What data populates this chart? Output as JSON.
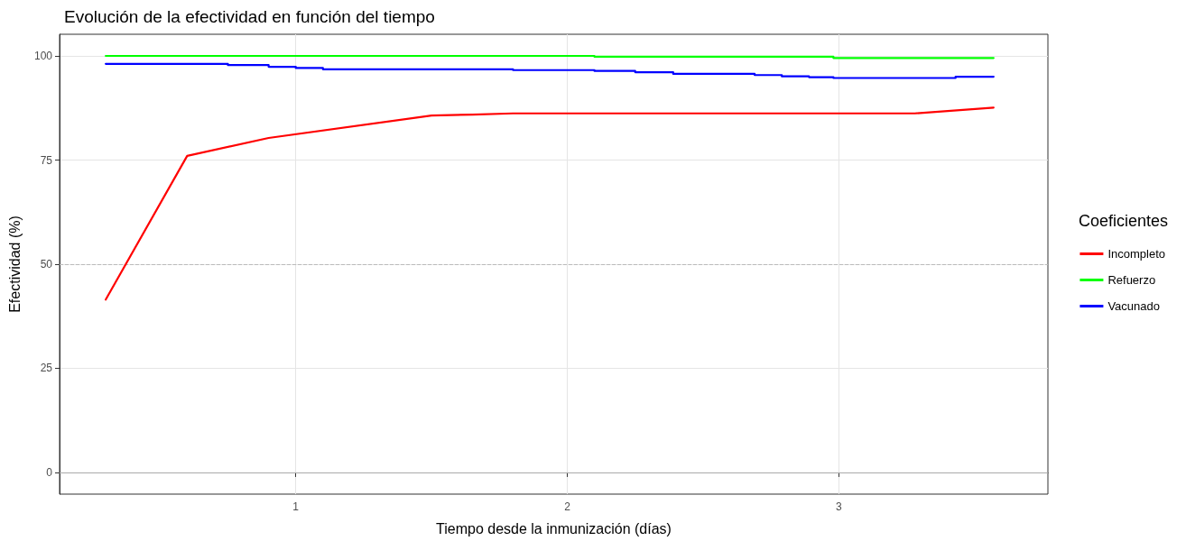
{
  "chart_data": {
    "type": "line",
    "title": "Evolución de la efectividad en función del tiempo",
    "xlabel": "Tiempo desde la inmunización (días)",
    "ylabel": "Efectividad (%)",
    "legend_title": "Coeficientes",
    "legend": "right",
    "grid": true,
    "marker": "none",
    "line_style": "solid",
    "xlim": [
      0.13,
      3.77
    ],
    "xticks": [
      1,
      2,
      3
    ],
    "ylim": [
      -5.2,
      105.2
    ],
    "yticks": [
      0,
      25,
      50,
      75,
      100
    ],
    "series": [
      {
        "name": "Incompleto",
        "color": "#ff0000",
        "x": [
          0.3,
          0.6,
          0.9,
          1.5,
          1.65,
          1.8,
          3.28,
          3.57
        ],
        "values": [
          41.5,
          76,
          80.3,
          85.7,
          85.9,
          86.2,
          86.2,
          87.6
        ]
      },
      {
        "name": "Refuerzo",
        "color": "#00ff00",
        "x": [
          0.3,
          2.1,
          2.1,
          2.98,
          2.98,
          3.57
        ],
        "values": [
          100,
          100,
          99.8,
          99.8,
          99.5,
          99.5
        ]
      },
      {
        "name": "Vacunado",
        "color": "#0000ff",
        "x": [
          0.3,
          0.75,
          0.75,
          0.9,
          0.9,
          1.0,
          1.0,
          1.1,
          1.1,
          1.8,
          1.8,
          2.1,
          2.1,
          2.25,
          2.25,
          2.39,
          2.39,
          2.69,
          2.69,
          2.79,
          2.79,
          2.89,
          2.89,
          2.98,
          2.98,
          3.43,
          3.43,
          3.57
        ],
        "values": [
          98.1,
          98.1,
          97.8,
          97.8,
          97.4,
          97.4,
          97.1,
          97.1,
          96.8,
          96.8,
          96.6,
          96.6,
          96.4,
          96.4,
          96.1,
          96.1,
          95.7,
          95.7,
          95.4,
          95.4,
          95.1,
          95.1,
          94.9,
          94.9,
          94.7,
          94.7,
          95.0,
          95.0
        ]
      }
    ],
    "ref_lines": [
      {
        "axis": "y",
        "value": 50,
        "color": "#bbbbbb",
        "line_style": "dashed"
      },
      {
        "axis": "y",
        "value": 0,
        "color": "#aaaaaa",
        "line_style": "solid"
      }
    ]
  }
}
